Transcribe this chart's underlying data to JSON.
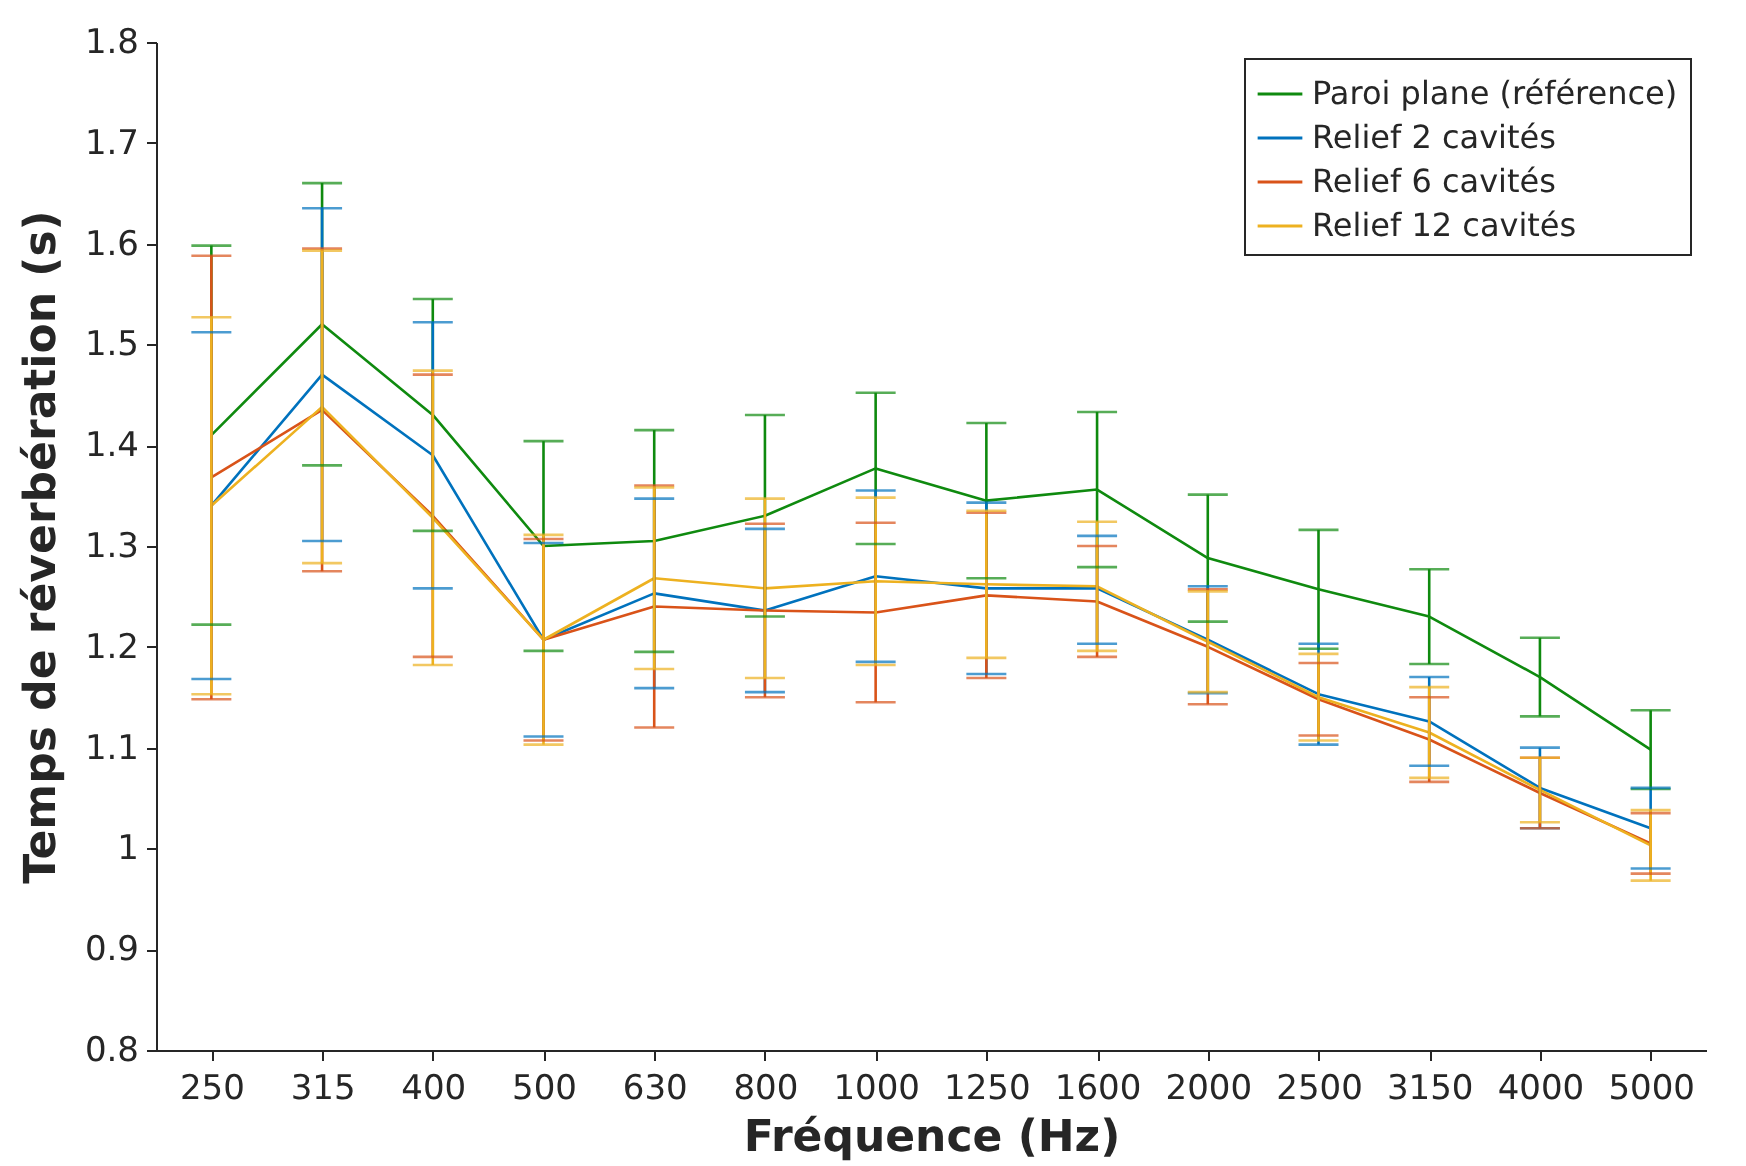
{
  "chart_data": {
    "type": "line",
    "xlabel": "Fréquence (Hz)",
    "ylabel": "Temps de réverbération (s)",
    "categories": [
      "250",
      "315",
      "400",
      "500",
      "630",
      "800",
      "1000",
      "1250",
      "1600",
      "2000",
      "2500",
      "3150",
      "4000",
      "5000"
    ],
    "ylim": [
      0.8,
      1.8
    ],
    "yticks": [
      0.8,
      0.9,
      {
        "value": 1,
        "label": "1"
      },
      1.1,
      1.2,
      1.3,
      1.4,
      1.5,
      1.6,
      1.7,
      1.8
    ],
    "grid": false,
    "legend": "top right",
    "marker": "none",
    "line_style": "solid",
    "series": [
      {
        "name": "Paroi plane (référence)",
        "color": "#0f8a0f",
        "values": [
          1.41,
          1.52,
          1.43,
          1.3,
          1.305,
          1.33,
          1.377,
          1.345,
          1.356,
          1.288,
          1.257,
          1.23,
          1.17,
          1.098
        ],
        "errors": [
          0.188,
          0.14,
          0.115,
          0.104,
          0.11,
          0.1,
          0.075,
          0.077,
          0.077,
          0.063,
          0.059,
          0.047,
          0.039,
          0.039
        ]
      },
      {
        "name": "Relief 2 cavités",
        "color": "#0072bd",
        "values": [
          1.34,
          1.47,
          1.39,
          1.207,
          1.253,
          1.236,
          1.27,
          1.258,
          1.258,
          1.207,
          1.153,
          1.126,
          1.06,
          1.02
        ],
        "errors": [
          0.172,
          0.165,
          0.132,
          0.096,
          0.094,
          0.081,
          0.085,
          0.085,
          [
            1.203,
            1.31
          ],
          0.053,
          0.05,
          0.044,
          0.04,
          0.04
        ]
      },
      {
        "name": "Relief 6 cavités",
        "color": "#d95319",
        "values": [
          1.368,
          1.435,
          1.33,
          1.207,
          1.24,
          1.236,
          1.234,
          1.251,
          1.245,
          1.2,
          1.148,
          1.108,
          1.055,
          1.005
        ],
        "errors": [
          0.22,
          0.16,
          0.14,
          0.1,
          0.12,
          0.086,
          0.089,
          0.082,
          0.055,
          0.057,
          0.036,
          0.042,
          0.035,
          0.03
        ]
      },
      {
        "name": "Relief 12 cavités",
        "color": "#edb120",
        "values": [
          1.34,
          1.438,
          1.328,
          1.207,
          1.268,
          1.258,
          1.265,
          1.262,
          1.26,
          1.205,
          1.15,
          1.115,
          1.058,
          1.003
        ],
        "errors": [
          0.187,
          0.155,
          0.146,
          0.104,
          0.09,
          0.089,
          0.083,
          0.073,
          0.064,
          0.05,
          0.043,
          0.045,
          0.032,
          0.035
        ]
      }
    ]
  }
}
